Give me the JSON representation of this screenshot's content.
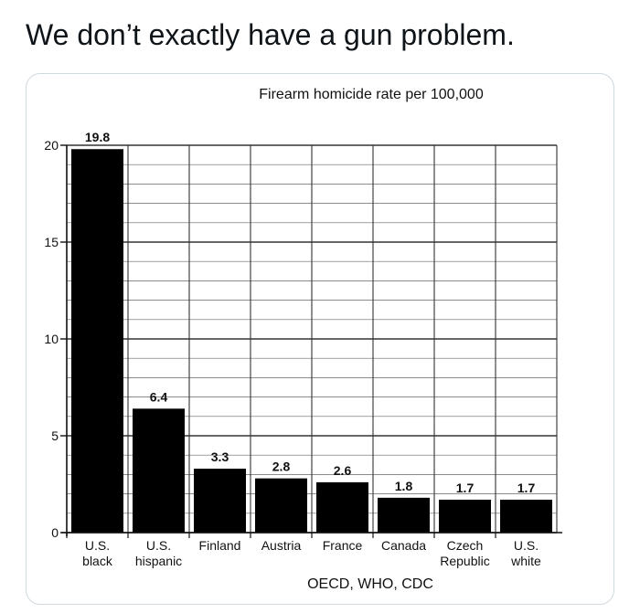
{
  "post": {
    "text": "We don’t exactly have a gun problem."
  },
  "chart_data": {
    "type": "bar",
    "title": "Firearm homicide rate per 100,000",
    "source": "OECD, WHO, CDC",
    "categories": [
      [
        "U.S.",
        "black"
      ],
      [
        "U.S.",
        "hispanic"
      ],
      [
        "Finland"
      ],
      [
        "Austria"
      ],
      [
        "France"
      ],
      [
        "Canada"
      ],
      [
        "Czech",
        "Republic"
      ],
      [
        "U.S.",
        "white"
      ]
    ],
    "values": [
      19.8,
      6.4,
      3.3,
      2.8,
      2.6,
      1.8,
      1.7,
      1.7
    ],
    "value_labels": [
      "19.8",
      "6.4",
      "3.3",
      "2.8",
      "2.6",
      "1.8",
      "1.7",
      "1.7"
    ],
    "yticks": [
      0,
      5,
      10,
      15,
      20
    ],
    "ylim": [
      0,
      20
    ],
    "grid": true,
    "bar_color": "#000000",
    "grid_color": "#333333"
  }
}
